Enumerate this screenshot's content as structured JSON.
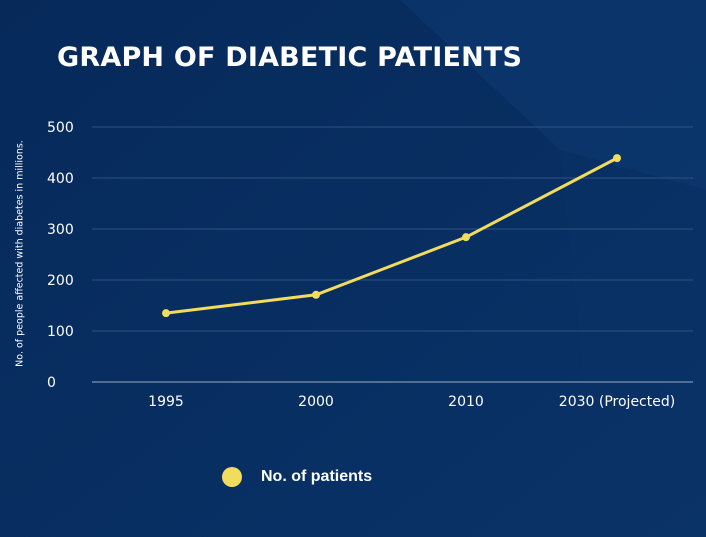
{
  "chart_data": {
    "type": "line",
    "title": "GRAPH OF DIABETIC PATIENTS",
    "ylabel": "No. of people affected with diabetes in millions.",
    "xlabel": "",
    "categories": [
      "1995",
      "2000",
      "2010",
      "2030 (Projected)"
    ],
    "series": [
      {
        "name": "No. of patients",
        "values": [
          135,
          171,
          284,
          439
        ]
      }
    ],
    "ylim": [
      0,
      500
    ],
    "yticks": [
      "0",
      "100",
      "200",
      "300",
      "400",
      "500"
    ],
    "grid": true,
    "legend": "bottom",
    "colors": {
      "background": "#062a5a",
      "line": "#f2dc5d",
      "grid": "#3e5f8c",
      "text": "#ffffff"
    }
  }
}
